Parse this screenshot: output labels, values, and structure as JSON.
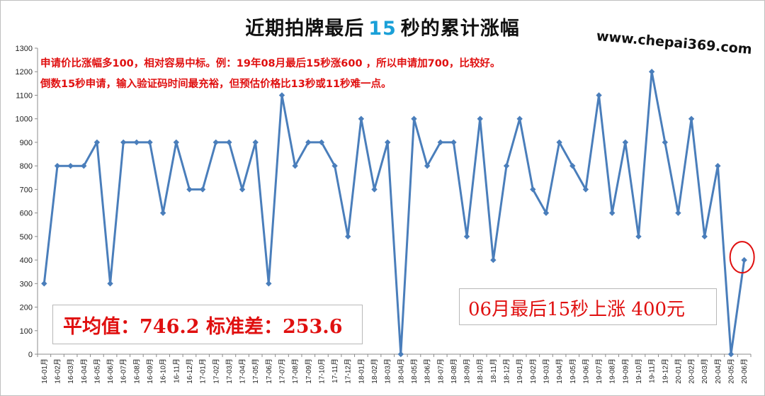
{
  "title": {
    "before": "近期拍牌最后",
    "highlight": "15",
    "after": "秒的累计涨幅"
  },
  "website": "www.chepai369.com",
  "notes": [
    "申请价比涨幅多100，相对容易中标。例：19年08月最后15秒涨600 ，所以申请加700，比较好。",
    "倒数15秒申请，输入验证码时间最充裕，但预估价格比13秒或11秒难一点。"
  ],
  "stats_text": "平均值：746.2 标准差：253.6",
  "callout_text": "06月最后15秒上涨 400元",
  "colors": {
    "line": "#4a7ebb",
    "marker": "#4a7ebb",
    "highlight_circle": "#e01010",
    "text_red": "#e01010",
    "title_num": "#1aa0d8"
  },
  "chart_data": {
    "type": "line",
    "ylim": [
      0,
      1300
    ],
    "yticks": [
      0,
      100,
      200,
      300,
      400,
      500,
      600,
      700,
      800,
      900,
      1000,
      1100,
      1200,
      1300
    ],
    "grid": false,
    "categories": [
      "16-01月",
      "16-02月",
      "16-03月",
      "16-04月",
      "16-05月",
      "16-06月",
      "16-07月",
      "16-08月",
      "16-09月",
      "16-10月",
      "16-11月",
      "16-12月",
      "17-01月",
      "17-02月",
      "17-03月",
      "17-04月",
      "17-05月",
      "17-06月",
      "17-07月",
      "17-08月",
      "17-09月",
      "17-10月",
      "17-11月",
      "17-12月",
      "18-01月",
      "18-02月",
      "18-03月",
      "18-04月",
      "18-05月",
      "18-06月",
      "18-07月",
      "18-08月",
      "18-09月",
      "18-10月",
      "18-11月",
      "18-12月",
      "19-01月",
      "19-02月",
      "19-03月",
      "19-04月",
      "19-05月",
      "19-06月",
      "19-07月",
      "19-08月",
      "19-09月",
      "19-10月",
      "19-11月",
      "19-12月",
      "20-01月",
      "20-02月",
      "20-03月",
      "20-04月",
      "20-05月",
      "20-06月"
    ],
    "values": [
      300,
      800,
      800,
      800,
      900,
      300,
      900,
      900,
      900,
      600,
      900,
      700,
      700,
      900,
      900,
      700,
      900,
      300,
      1100,
      800,
      900,
      900,
      800,
      500,
      1000,
      700,
      900,
      0,
      1000,
      800,
      900,
      900,
      500,
      1000,
      400,
      800,
      1000,
      700,
      600,
      900,
      800,
      700,
      1100,
      600,
      900,
      500,
      1200,
      900,
      600,
      1000,
      500,
      800,
      0,
      400
    ],
    "highlighted_index": 53
  }
}
